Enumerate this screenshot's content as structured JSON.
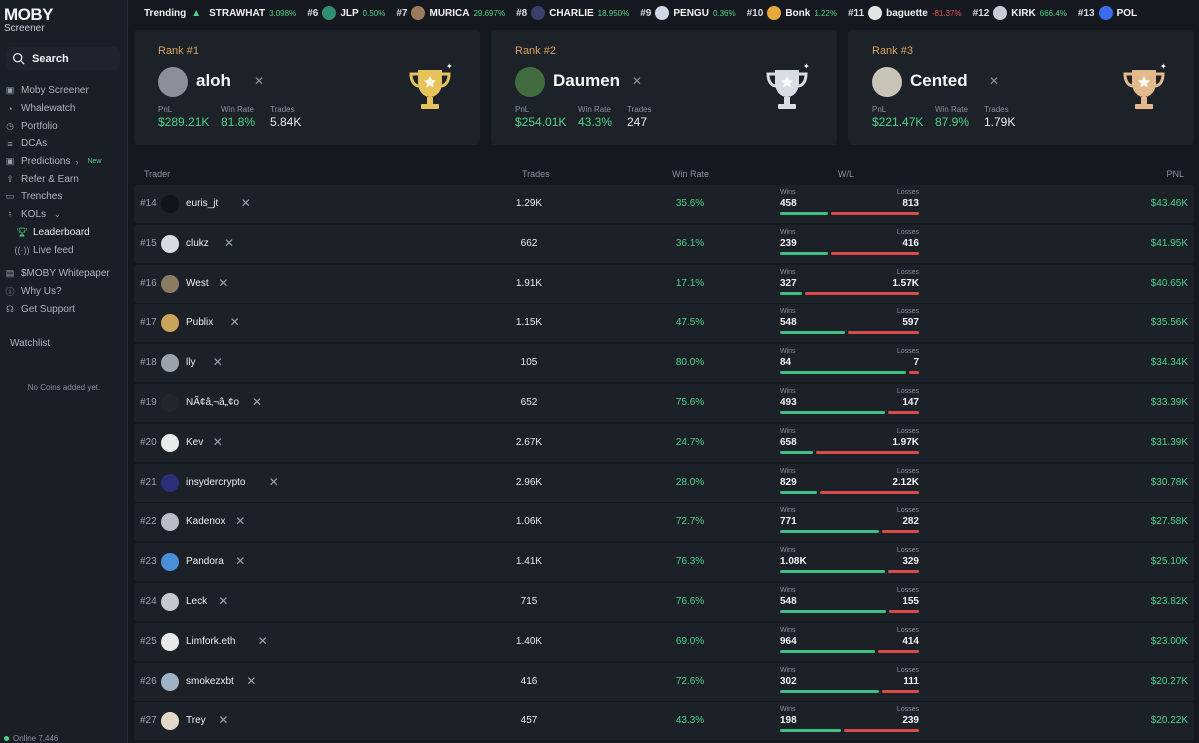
{
  "app": {
    "logo_text": "MOBY",
    "logo_sub": "Screener"
  },
  "sidebar": {
    "search_label": "Search",
    "items": [
      {
        "label": "Moby Screener"
      },
      {
        "label": "Whalewatch"
      },
      {
        "label": "Portfolio"
      },
      {
        "label": "DCAs"
      },
      {
        "label": "Predictions",
        "badge": "New"
      },
      {
        "label": "Refer & Earn"
      },
      {
        "label": "Trenches"
      },
      {
        "label": "KOLs"
      },
      {
        "label": "Leaderboard"
      },
      {
        "label": "Live feed"
      },
      {
        "label": "$MOBY Whitepaper"
      },
      {
        "label": "Why Us?"
      },
      {
        "label": "Get Support"
      }
    ],
    "watchlist_label": "Watchlist",
    "empty_text": "No Coins added yet.",
    "online_text": "Online 7,446"
  },
  "ticker": {
    "label": "Trending",
    "items": [
      {
        "rank": "",
        "name": "STRAWHAT",
        "change": "3.098%",
        "neg": false,
        "color": "#c9a86a"
      },
      {
        "rank": "#6",
        "name": "JLP",
        "change": "0.50%",
        "neg": false,
        "color": "#2f8f6f"
      },
      {
        "rank": "#7",
        "name": "MURICA",
        "change": "29.697%",
        "neg": false,
        "color": "#9b7b5a"
      },
      {
        "rank": "#8",
        "name": "CHARLIE",
        "change": "18.950%",
        "neg": false,
        "color": "#3a3f6b"
      },
      {
        "rank": "#9",
        "name": "PENGU",
        "change": "0.36%",
        "neg": false,
        "color": "#cfd6e6"
      },
      {
        "rank": "#10",
        "name": "Bonk",
        "change": "1.22%",
        "neg": false,
        "color": "#e8a93b"
      },
      {
        "rank": "#11",
        "name": "baguette",
        "change": "-81.37%",
        "neg": true,
        "color": "#e4e4e4"
      },
      {
        "rank": "#12",
        "name": "KIRK",
        "change": "666.4%",
        "neg": false,
        "color": "#c7ccd6"
      },
      {
        "rank": "#13",
        "name": "POL",
        "change": "",
        "neg": false,
        "color": "#3b6cf0"
      }
    ]
  },
  "top3": [
    {
      "rank": "Rank #1",
      "name": "aloh",
      "pnl": "$289.21K",
      "win_rate": "81.8%",
      "trades": "5.84K",
      "trophy": "#e6c35a"
    },
    {
      "rank": "Rank #2",
      "name": "Daumen",
      "pnl": "$254.01K",
      "win_rate": "43.3%",
      "trades": "247",
      "trophy": "#d9dde3"
    },
    {
      "rank": "Rank #3",
      "name": "Cented",
      "pnl": "$221.47K",
      "win_rate": "87.9%",
      "trades": "1.79K",
      "trophy": "#e2b98a"
    }
  ],
  "stat_labels": {
    "pnl": "PnL",
    "win_rate": "Win Rate",
    "trades": "Trades"
  },
  "table": {
    "headers": {
      "trader": "Trader",
      "trades": "Trades",
      "win_rate": "Win Rate",
      "wl": "W/L",
      "pnl": "PNL"
    },
    "wins_label": "Wins",
    "losses_label": "Losses",
    "rows": [
      {
        "rank": "#14",
        "name": "euris_jt",
        "trades": "1.29K",
        "win_rate": "35.6%",
        "wins": "458",
        "losses": "813",
        "win_frac": 0.36,
        "pnl": "$43.46K",
        "color": "#111418"
      },
      {
        "rank": "#15",
        "name": "clukz",
        "trades": "662",
        "win_rate": "36.1%",
        "wins": "239",
        "losses": "416",
        "win_frac": 0.36,
        "pnl": "$41.95K",
        "color": "#d7dce3"
      },
      {
        "rank": "#16",
        "name": "West",
        "trades": "1.91K",
        "win_rate": "17.1%",
        "wins": "327",
        "losses": "1.57K",
        "win_frac": 0.17,
        "pnl": "$40.65K",
        "color": "#8a7b62"
      },
      {
        "rank": "#17",
        "name": "Publix",
        "trades": "1.15K",
        "win_rate": "47.5%",
        "wins": "548",
        "losses": "597",
        "win_frac": 0.48,
        "pnl": "$35.56K",
        "color": "#c9a45b"
      },
      {
        "rank": "#18",
        "name": "lly",
        "trades": "105",
        "win_rate": "80.0%",
        "wins": "84",
        "losses": "7",
        "win_frac": 0.92,
        "pnl": "$34.34K",
        "color": "#9da3ab"
      },
      {
        "rank": "#19",
        "name": "NÃ¢â‚¬â„¢o",
        "trades": "652",
        "win_rate": "75.6%",
        "wins": "493",
        "losses": "147",
        "win_frac": 0.77,
        "pnl": "$33.39K",
        "color": "#22262d"
      },
      {
        "rank": "#20",
        "name": "Kev",
        "trades": "2.67K",
        "win_rate": "24.7%",
        "wins": "658",
        "losses": "1.97K",
        "win_frac": 0.25,
        "pnl": "$31.39K",
        "color": "#eaeaea"
      },
      {
        "rank": "#21",
        "name": "insydercrypto",
        "trades": "2.96K",
        "win_rate": "28.0%",
        "wins": "829",
        "losses": "2.12K",
        "win_frac": 0.28,
        "pnl": "$30.78K",
        "color": "#2a2f7a"
      },
      {
        "rank": "#22",
        "name": "Kadenox",
        "trades": "1.06K",
        "win_rate": "72.7%",
        "wins": "771",
        "losses": "282",
        "win_frac": 0.73,
        "pnl": "$27.58K",
        "color": "#b9bec6"
      },
      {
        "rank": "#23",
        "name": "Pandora",
        "trades": "1.41K",
        "win_rate": "76.3%",
        "wins": "1.08K",
        "losses": "329",
        "win_frac": 0.77,
        "pnl": "$25.10K",
        "color": "#4a90d9"
      },
      {
        "rank": "#24",
        "name": "Leck",
        "trades": "715",
        "win_rate": "76.6%",
        "wins": "548",
        "losses": "155",
        "win_frac": 0.78,
        "pnl": "$23.82K",
        "color": "#c4c8cf"
      },
      {
        "rank": "#25",
        "name": "Limfork.eth",
        "trades": "1.40K",
        "win_rate": "69.0%",
        "wins": "964",
        "losses": "414",
        "win_frac": 0.7,
        "pnl": "$23.00K",
        "color": "#e9e9e9"
      },
      {
        "rank": "#26",
        "name": "smokezxbt",
        "trades": "416",
        "win_rate": "72.6%",
        "wins": "302",
        "losses": "111",
        "win_frac": 0.73,
        "pnl": "$20.27K",
        "color": "#9fb3c6"
      },
      {
        "rank": "#27",
        "name": "Trey",
        "trades": "457",
        "win_rate": "43.3%",
        "wins": "198",
        "losses": "239",
        "win_frac": 0.45,
        "pnl": "$20.22K",
        "color": "#e2d8c8"
      }
    ]
  }
}
